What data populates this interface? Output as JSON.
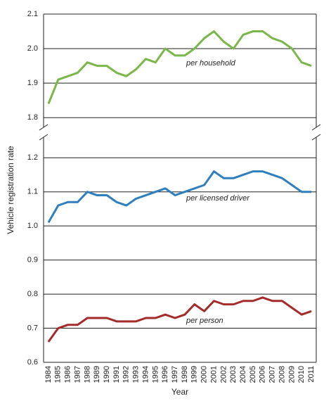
{
  "chart_data": [
    {
      "type": "line",
      "ylabel": "Vehicle registration rate",
      "categories": [
        "1984",
        "1985",
        "1986",
        "1987",
        "1988",
        "1989",
        "1990",
        "1991",
        "1992",
        "1993",
        "1994",
        "1995",
        "1996",
        "1997",
        "1998",
        "1999",
        "2000",
        "2001",
        "2002",
        "2003",
        "2004",
        "2005",
        "2006",
        "2007",
        "2008",
        "2009",
        "2010",
        "2011"
      ],
      "ylim": [
        1.78,
        2.1
      ],
      "yticks": [
        1.8,
        1.9,
        {
          "value": 2.0,
          "label": "2.0"
        },
        2.1
      ],
      "grid": true,
      "series": [
        {
          "name": "per household",
          "color": "#7ab648",
          "values": [
            1.84,
            1.91,
            1.92,
            1.93,
            1.96,
            1.95,
            1.95,
            1.93,
            1.92,
            1.94,
            1.97,
            1.96,
            2.0,
            1.98,
            1.98,
            2.0,
            2.03,
            2.05,
            2.02,
            2.0,
            2.04,
            2.05,
            2.05,
            2.03,
            2.02,
            2.0,
            1.96,
            1.95
          ]
        }
      ]
    },
    {
      "type": "line",
      "xlabel": "Year",
      "categories": [
        "1984",
        "1985",
        "1986",
        "1987",
        "1988",
        "1989",
        "1990",
        "1991",
        "1992",
        "1993",
        "1994",
        "1995",
        "1996",
        "1997",
        "1998",
        "1999",
        "2000",
        "2001",
        "2002",
        "2003",
        "2004",
        "2005",
        "2006",
        "2007",
        "2008",
        "2009",
        "2010",
        "2011"
      ],
      "ylim": [
        0.6,
        1.25
      ],
      "yticks": [
        0.6,
        0.7,
        0.8,
        0.9,
        {
          "value": 1.0,
          "label": "1.0"
        },
        1.1,
        1.2
      ],
      "grid": true,
      "series": [
        {
          "name": "per licensed driver",
          "color": "#2f7fbf",
          "values": [
            1.01,
            1.06,
            1.07,
            1.07,
            1.1,
            1.09,
            1.09,
            1.07,
            1.06,
            1.08,
            1.09,
            1.1,
            1.11,
            1.09,
            1.1,
            1.11,
            1.12,
            1.16,
            1.14,
            1.14,
            1.15,
            1.16,
            1.16,
            1.15,
            1.14,
            1.12,
            1.1,
            1.1
          ]
        },
        {
          "name": "per person",
          "color": "#a52a2a",
          "values": [
            0.66,
            0.7,
            0.71,
            0.71,
            0.73,
            0.73,
            0.73,
            0.72,
            0.72,
            0.72,
            0.73,
            0.73,
            0.74,
            0.73,
            0.74,
            0.77,
            0.75,
            0.78,
            0.77,
            0.77,
            0.78,
            0.78,
            0.79,
            0.78,
            0.78,
            0.76,
            0.74,
            0.75
          ]
        }
      ]
    }
  ]
}
